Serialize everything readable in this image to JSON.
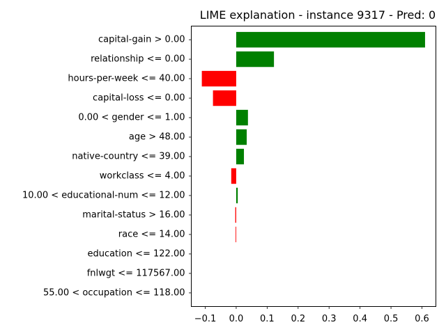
{
  "chart_data": {
    "type": "bar",
    "orientation": "horizontal",
    "title": "LIME explanation - instance 9317 - Pred: 0",
    "xlabel": "",
    "ylabel": "",
    "xlim": [
      -0.145,
      0.645
    ],
    "grid": false,
    "legend": "none",
    "colors": {
      "positive": "#008000",
      "negative": "#ff0000"
    },
    "categories": [
      "capital-gain > 0.00",
      "relationship <= 0.00",
      "hours-per-week <= 40.00",
      "capital-loss <= 0.00",
      "0.00 < gender <= 1.00",
      "age > 48.00",
      "native-country <= 39.00",
      "workclass <= 4.00",
      "10.00 < educational-num <= 12.00",
      "marital-status > 16.00",
      "race <= 14.00",
      "education <= 122.00",
      "fnlwgt <= 117567.00",
      "55.00 < occupation <= 118.00"
    ],
    "values": [
      0.61,
      0.122,
      -0.111,
      -0.075,
      0.038,
      0.034,
      0.025,
      -0.016,
      0.005,
      -0.003,
      -0.002,
      0.0,
      0.0,
      0.0
    ],
    "xticks": [
      -0.1,
      0.0,
      0.1,
      0.2,
      0.3,
      0.4,
      0.5,
      0.6
    ],
    "xtick_labels": [
      "−0.1",
      "0.0",
      "0.1",
      "0.2",
      "0.3",
      "0.4",
      "0.5",
      "0.6"
    ]
  }
}
